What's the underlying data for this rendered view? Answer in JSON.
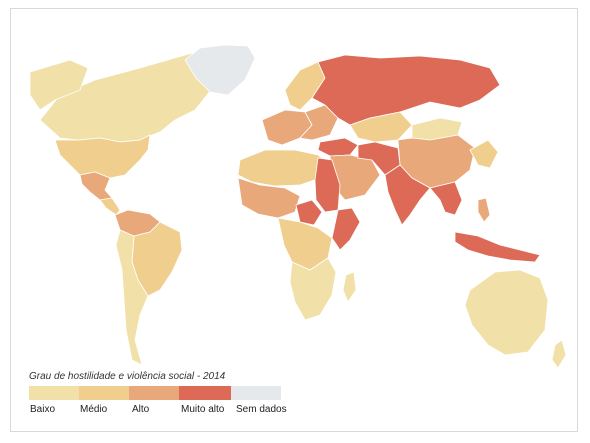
{
  "colors": {
    "background": "#ffffff",
    "ocean": "#ffffff",
    "baixo": "#f1e1a8",
    "medio": "#f0cf8e",
    "alto": "#e9a87a",
    "muito_alto": "#dc6a57",
    "sem_dados": "#e6e9ec"
  },
  "legend": {
    "title": "Grau de hostilidade e violência social - 2014",
    "items": [
      {
        "label": "Baixo",
        "key": "baixo"
      },
      {
        "label": "Médio",
        "key": "medio"
      },
      {
        "label": "Alto",
        "key": "alto"
      },
      {
        "label": "Muito alto",
        "key": "muito_alto"
      },
      {
        "label": "Sem dados",
        "key": "sem_dados"
      }
    ]
  }
}
